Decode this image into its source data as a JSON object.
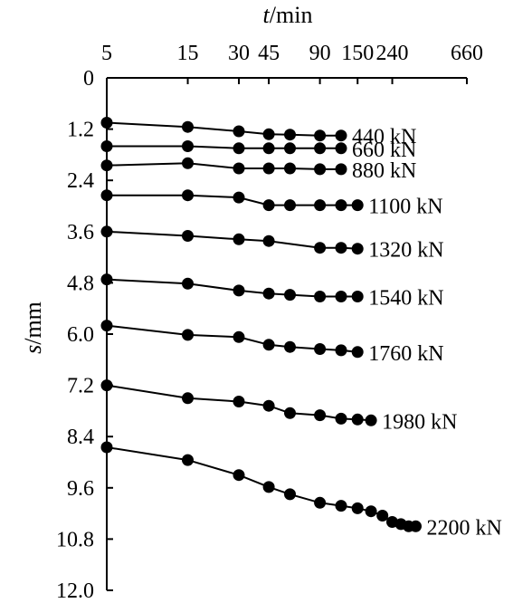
{
  "chart_data": {
    "type": "scatter",
    "x_axis": {
      "label_italic": "t",
      "label_unit": "/min",
      "position": "top",
      "scale": "log",
      "ticks": [
        5,
        15,
        30,
        45,
        90,
        150,
        240,
        660
      ],
      "tick_labels": [
        "5",
        "15",
        "30",
        "45",
        "90",
        "150",
        "240",
        "660"
      ]
    },
    "y_axis": {
      "label_italic": "s",
      "label_unit": "/mm",
      "inverted": true,
      "ylim": [
        0,
        12.0
      ],
      "ticks": [
        0,
        1.2,
        2.4,
        3.6,
        4.8,
        6.0,
        7.2,
        8.4,
        9.6,
        10.8,
        12.0
      ],
      "tick_labels": [
        "0",
        "1.2",
        "2.4",
        "3.6",
        "4.8",
        "6.0",
        "7.2",
        "8.4",
        "9.6",
        "10.8",
        "12.0"
      ]
    },
    "grid": false,
    "legend": "none",
    "marker": "filled-circle",
    "color": "#000000",
    "series": [
      {
        "name": "440 kN",
        "x": [
          5,
          15,
          30,
          45,
          60,
          90,
          120
        ],
        "y": [
          1.05,
          1.15,
          1.25,
          1.32,
          1.33,
          1.35,
          1.35
        ]
      },
      {
        "name": "660 kN",
        "x": [
          5,
          15,
          30,
          45,
          60,
          90,
          120
        ],
        "y": [
          1.6,
          1.6,
          1.65,
          1.65,
          1.65,
          1.65,
          1.65
        ]
      },
      {
        "name": "880 kN",
        "x": [
          5,
          15,
          30,
          45,
          60,
          90,
          120
        ],
        "y": [
          2.05,
          2.0,
          2.12,
          2.12,
          2.12,
          2.14,
          2.14
        ]
      },
      {
        "name": "1100 kN",
        "x": [
          5,
          15,
          30,
          45,
          60,
          90,
          120,
          150
        ],
        "y": [
          2.75,
          2.75,
          2.8,
          2.98,
          2.98,
          2.98,
          2.98,
          2.98
        ]
      },
      {
        "name": "1320 kN",
        "x": [
          5,
          15,
          30,
          45,
          90,
          120,
          150
        ],
        "y": [
          3.6,
          3.7,
          3.78,
          3.82,
          3.98,
          3.98,
          4.0
        ]
      },
      {
        "name": "1540 kN",
        "x": [
          5,
          15,
          30,
          45,
          60,
          90,
          120,
          150
        ],
        "y": [
          4.72,
          4.82,
          4.98,
          5.05,
          5.08,
          5.12,
          5.12,
          5.12
        ]
      },
      {
        "name": "1760 kN",
        "x": [
          5,
          15,
          30,
          45,
          60,
          90,
          120,
          150
        ],
        "y": [
          5.8,
          6.02,
          6.07,
          6.25,
          6.3,
          6.35,
          6.38,
          6.42
        ]
      },
      {
        "name": "1980 kN",
        "x": [
          5,
          15,
          30,
          45,
          60,
          90,
          120,
          150,
          180
        ],
        "y": [
          7.2,
          7.5,
          7.58,
          7.68,
          7.85,
          7.9,
          7.98,
          8.0,
          8.02
        ]
      },
      {
        "name": "2200 kN",
        "x": [
          5,
          15,
          30,
          45,
          60,
          90,
          120,
          150,
          180,
          210,
          240,
          270,
          300,
          330
        ],
        "y": [
          8.65,
          8.95,
          9.3,
          9.58,
          9.75,
          9.95,
          10.02,
          10.08,
          10.15,
          10.25,
          10.4,
          10.45,
          10.5,
          10.5
        ]
      }
    ],
    "series_label_positions": "right-end"
  }
}
